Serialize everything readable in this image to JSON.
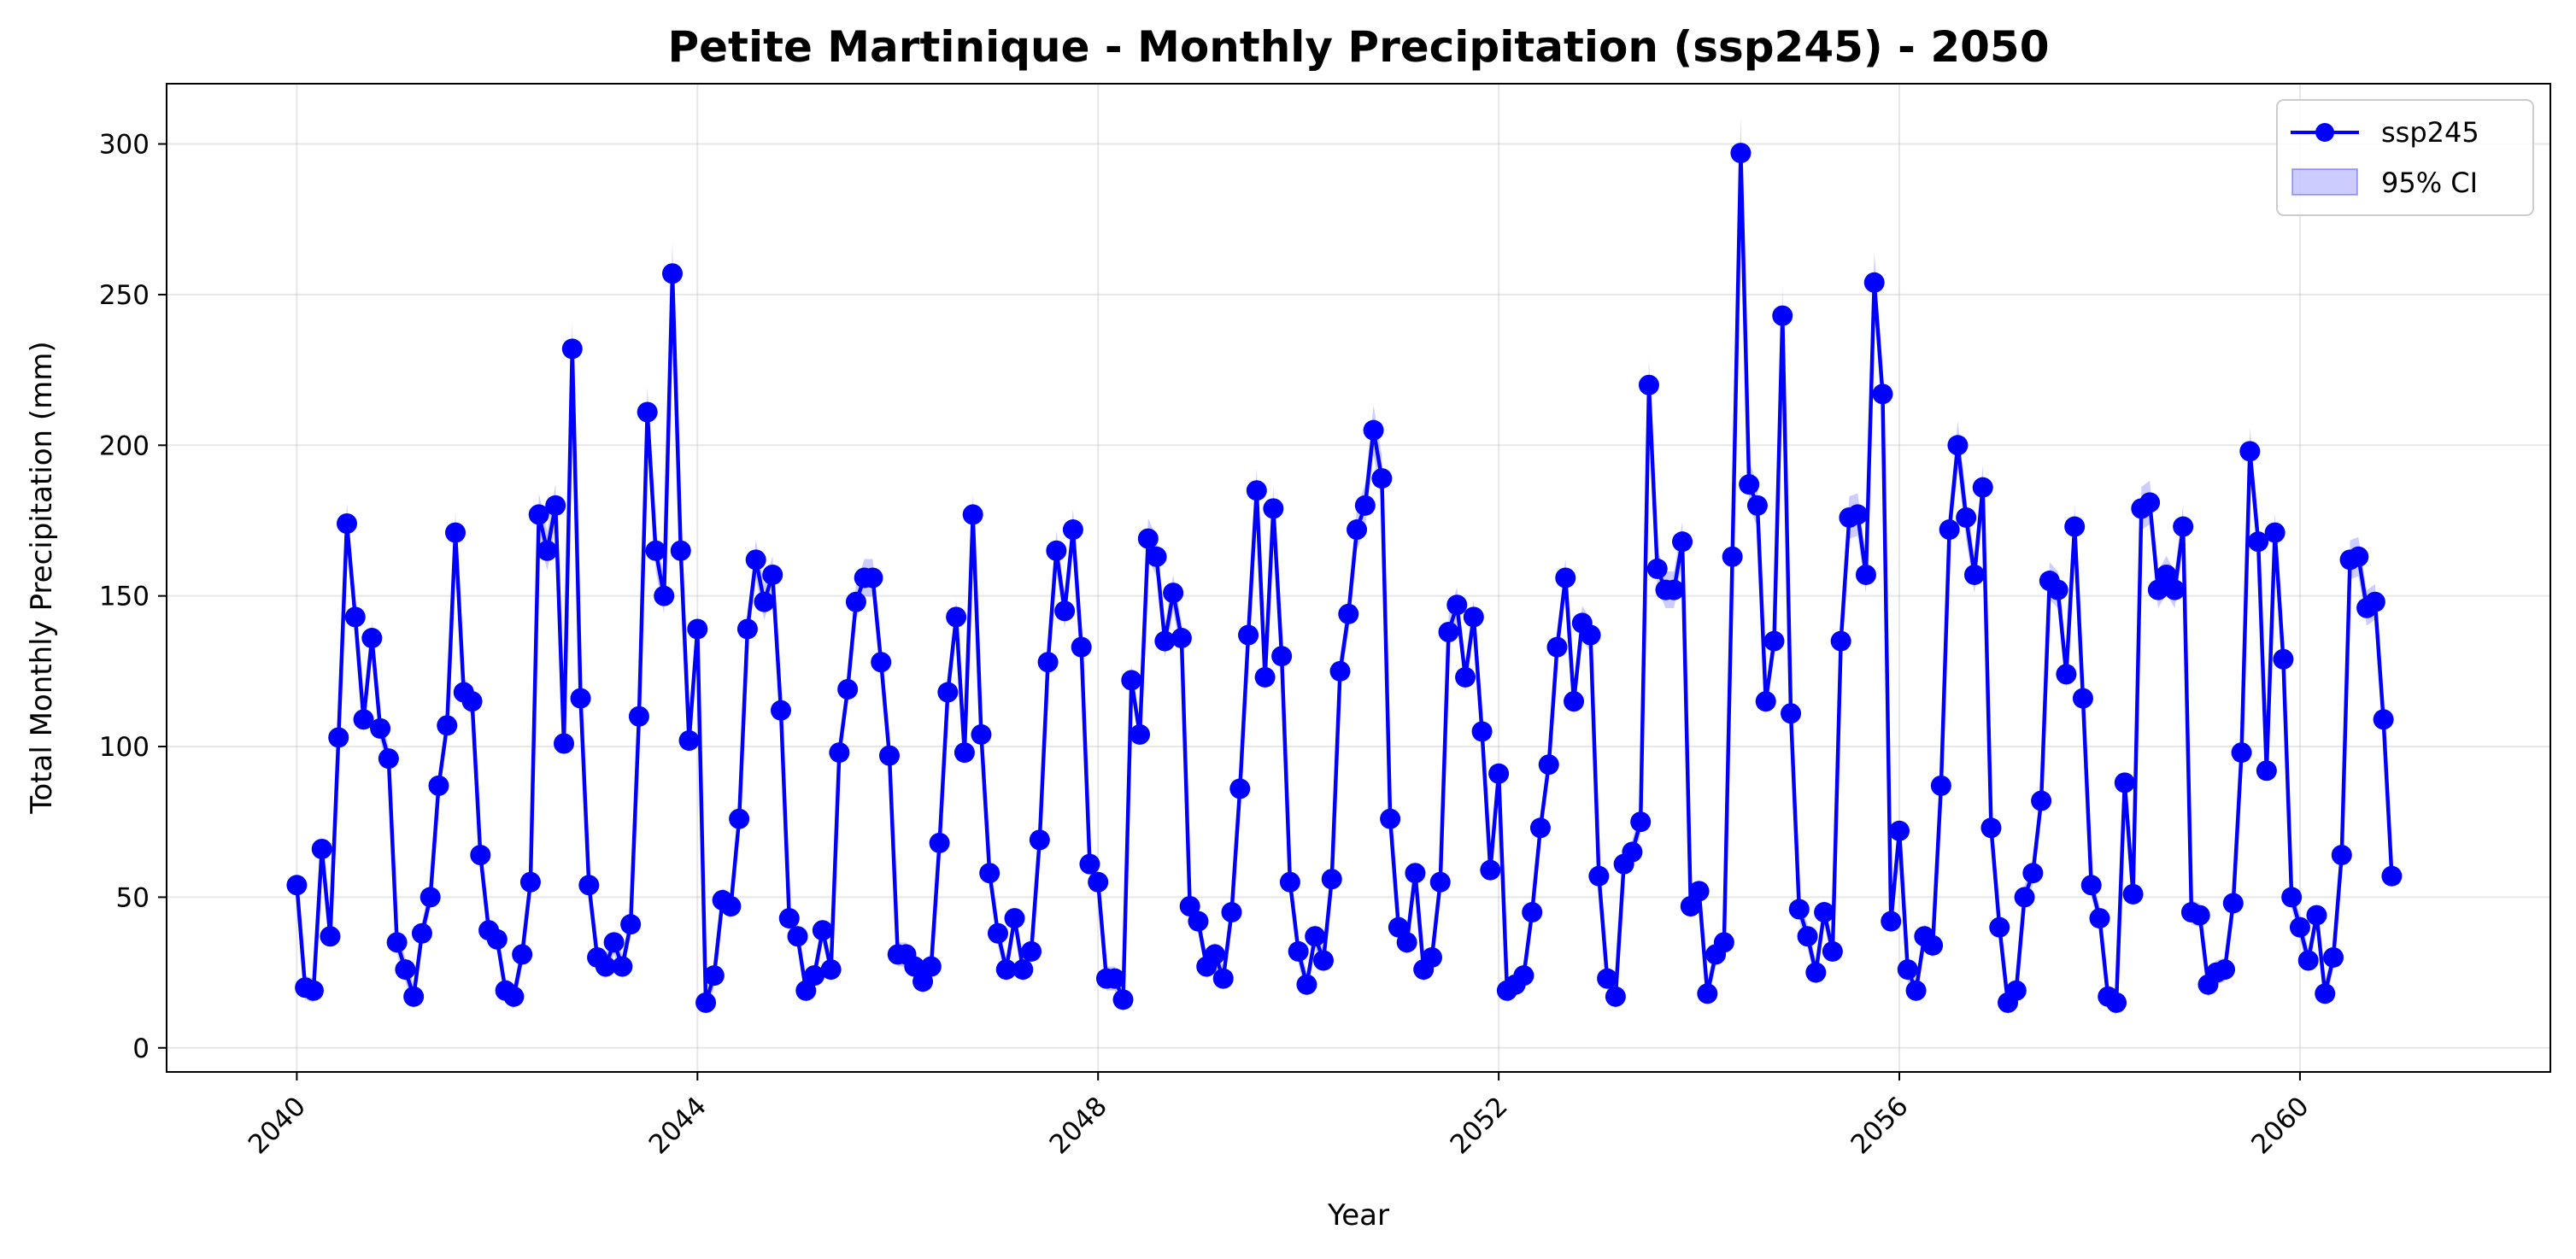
{
  "chart_data": {
    "type": "line",
    "title": "Petite Martinique - Monthly Precipitation (ssp245) - 2050",
    "xlabel": "Year",
    "ylabel": "Total Monthly Precipitation (mm)",
    "xlim": [
      2038.7,
      2062.5
    ],
    "ylim": [
      -8,
      320
    ],
    "xticks": [
      2040,
      2044,
      2048,
      2052,
      2056,
      2060
    ],
    "yticks": [
      0,
      50,
      100,
      150,
      200,
      250,
      300
    ],
    "grid": true,
    "legend_position": "top-right",
    "series": [
      {
        "name": "ssp245",
        "color": "#0000ff",
        "start_year": 2040,
        "months_per_year": 12,
        "values": [
          54,
          20,
          19,
          66,
          37,
          103,
          174,
          143,
          109,
          136,
          106,
          96,
          35,
          26,
          17,
          38,
          50,
          87,
          107,
          171,
          118,
          115,
          64,
          39,
          36,
          19,
          17,
          31,
          55,
          177,
          165,
          180,
          101,
          232,
          116,
          54,
          30,
          27,
          35,
          27,
          41,
          110,
          211,
          165,
          150,
          257,
          165,
          102,
          139,
          15,
          24,
          49,
          47,
          76,
          139,
          162,
          148,
          157,
          112,
          43,
          37,
          19,
          24,
          39,
          26,
          98,
          119,
          148,
          156,
          156,
          128,
          97,
          31,
          31,
          27,
          22,
          27,
          68,
          118,
          143,
          98,
          177,
          104,
          58,
          38,
          26,
          43,
          26,
          32,
          69,
          128,
          165,
          145,
          172,
          133,
          61,
          55,
          23,
          23,
          16,
          122,
          104,
          169,
          163,
          135,
          151,
          136,
          47,
          42,
          27,
          31,
          23,
          45,
          86,
          137,
          185,
          123,
          179,
          130,
          55,
          32,
          21,
          37,
          29,
          56,
          125,
          144,
          172,
          180,
          205,
          189,
          76,
          40,
          35,
          58,
          26,
          30,
          55,
          138,
          147,
          123,
          143,
          105,
          59,
          91,
          19,
          21,
          24,
          45,
          73,
          94,
          133,
          156,
          115,
          141,
          137,
          57,
          23,
          17,
          61,
          65,
          75,
          220,
          159,
          152,
          152,
          168,
          47,
          52,
          18,
          31,
          35,
          163,
          297,
          187,
          180,
          115,
          135,
          243,
          111,
          46,
          37,
          25,
          45,
          32,
          135,
          176,
          177,
          157,
          254,
          217,
          42,
          72,
          26,
          19,
          37,
          34,
          87,
          172,
          200,
          176,
          157,
          186,
          73,
          40,
          15,
          19,
          50,
          58,
          82,
          155,
          152,
          124,
          173,
          116,
          54,
          43,
          17,
          15,
          88,
          51,
          179,
          181,
          152,
          157,
          152,
          173,
          45,
          44,
          21,
          25,
          26,
          48,
          98,
          198,
          168,
          92,
          171,
          129,
          50,
          40,
          29,
          44,
          18,
          30,
          64,
          162,
          163,
          146,
          148,
          109,
          57
        ]
      }
    ],
    "ci": {
      "name": "95% CI",
      "color": "#0000ff"
    }
  }
}
